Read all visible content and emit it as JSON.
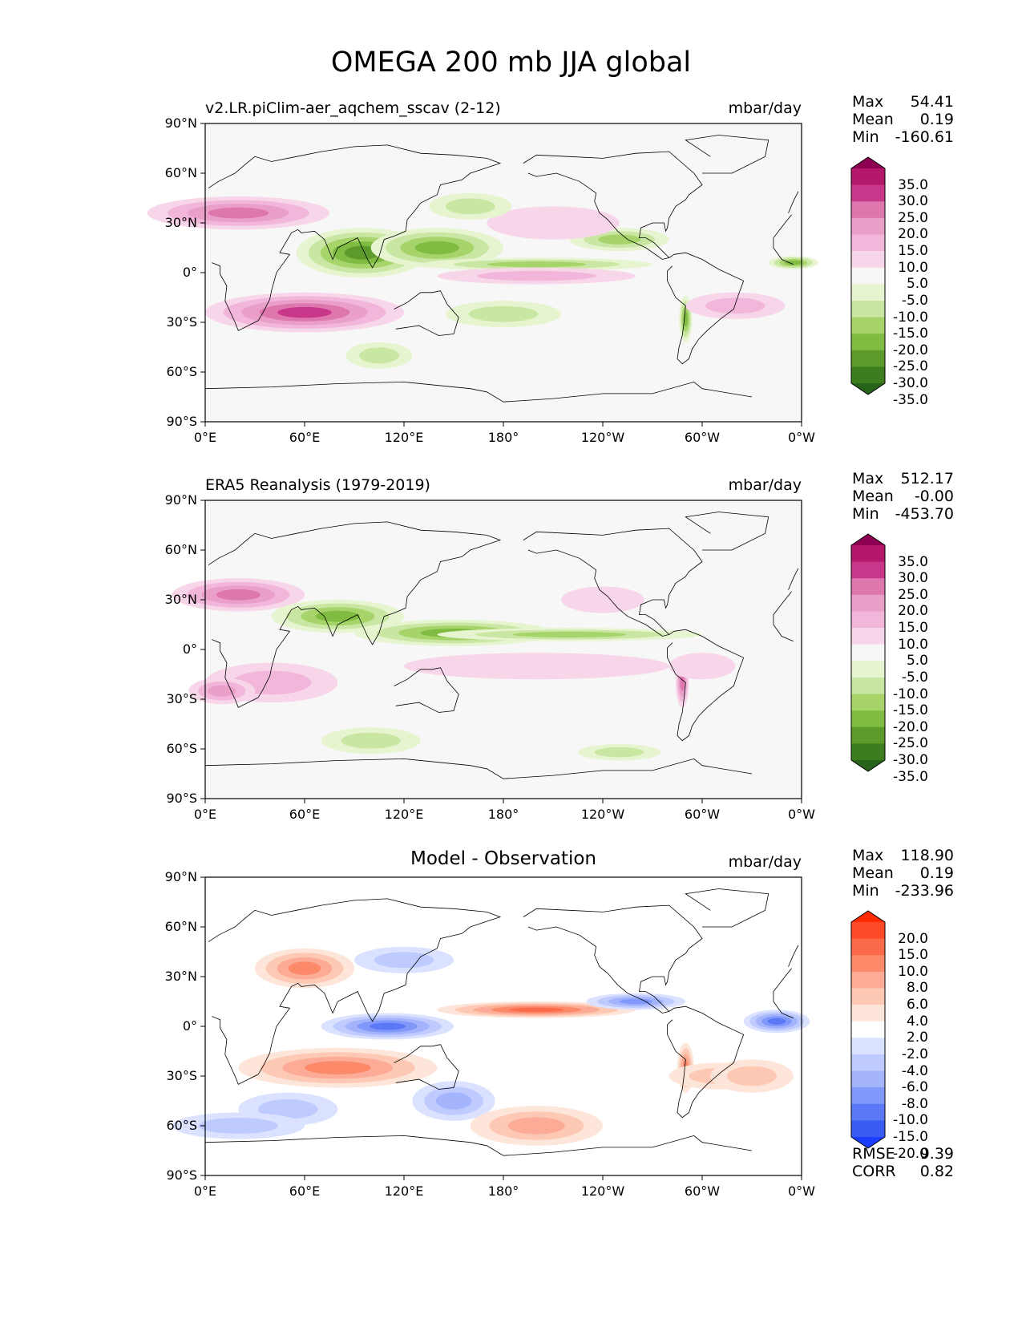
{
  "title": "OMEGA 200 mb JJA global",
  "chart_data": [
    {
      "type": "heatmap",
      "title": "v2.LR.piClim-aer_aqchem_sscav (2-12)",
      "units": "mbar/day",
      "xlabel": "",
      "ylabel": "",
      "x_ticks": [
        "0°E",
        "60°E",
        "120°E",
        "180°",
        "120°W",
        "60°W",
        "0°W"
      ],
      "y_ticks": [
        "90°N",
        "60°N",
        "30°N",
        "0°",
        "30°S",
        "60°S",
        "90°S"
      ],
      "stats": [
        {
          "label": "Max",
          "value": "54.41"
        },
        {
          "label": "Mean",
          "value": "0.19"
        },
        {
          "label": "Min",
          "value": "-160.61"
        }
      ],
      "colorbar": {
        "labels": [
          "35.0",
          "30.0",
          "25.0",
          "20.0",
          "15.0",
          "10.0",
          "5.0",
          "-5.0",
          "-10.0",
          "-15.0",
          "-20.0",
          "-25.0",
          "-30.0",
          "-35.0"
        ],
        "colors": [
          "#8e0152",
          "#b4186b",
          "#c9378a",
          "#de77ae",
          "#ea9fc9",
          "#f1b6da",
          "#f8d6e9",
          "#f7f7f7",
          "#e6f5d0",
          "#c9e6a2",
          "#a6d46b",
          "#7fbc41",
          "#5b9a2b",
          "#3d7d1e",
          "#276419"
        ],
        "extend": "both"
      }
    },
    {
      "type": "heatmap",
      "title": "ERA5 Reanalysis (1979-2019)",
      "units": "mbar/day",
      "xlabel": "",
      "ylabel": "",
      "x_ticks": [
        "0°E",
        "60°E",
        "120°E",
        "180°",
        "120°W",
        "60°W",
        "0°W"
      ],
      "y_ticks": [
        "90°N",
        "60°N",
        "30°N",
        "0°",
        "30°S",
        "60°S",
        "90°S"
      ],
      "stats": [
        {
          "label": "Max",
          "value": "512.17"
        },
        {
          "label": "Mean",
          "value": "-0.00"
        },
        {
          "label": "Min",
          "value": "-453.70"
        }
      ],
      "colorbar": {
        "labels": [
          "35.0",
          "30.0",
          "25.0",
          "20.0",
          "15.0",
          "10.0",
          "5.0",
          "-5.0",
          "-10.0",
          "-15.0",
          "-20.0",
          "-25.0",
          "-30.0",
          "-35.0"
        ],
        "colors": [
          "#8e0152",
          "#b4186b",
          "#c9378a",
          "#de77ae",
          "#ea9fc9",
          "#f1b6da",
          "#f8d6e9",
          "#f7f7f7",
          "#e6f5d0",
          "#c9e6a2",
          "#a6d46b",
          "#7fbc41",
          "#5b9a2b",
          "#3d7d1e",
          "#276419"
        ],
        "extend": "both"
      }
    },
    {
      "type": "heatmap",
      "title": "Model - Observation",
      "units": "mbar/day",
      "xlabel": "",
      "ylabel": "",
      "x_ticks": [
        "0°E",
        "60°E",
        "120°E",
        "180°",
        "120°W",
        "60°W",
        "0°W"
      ],
      "y_ticks": [
        "90°N",
        "60°N",
        "30°N",
        "0°",
        "30°S",
        "60°S",
        "90°S"
      ],
      "stats": [
        {
          "label": "Max",
          "value": "118.90"
        },
        {
          "label": "Mean",
          "value": "0.19"
        },
        {
          "label": "Min",
          "value": "-233.96"
        }
      ],
      "colorbar": {
        "labels": [
          "20.0",
          "15.0",
          "10.0",
          "8.0",
          "6.0",
          "4.0",
          "2.0",
          "-2.0",
          "-4.0",
          "-6.0",
          "-8.0",
          "-10.0",
          "-15.0",
          "-20.0"
        ],
        "colors": [
          "#ff2a00",
          "#ff4a2a",
          "#fb6a4a",
          "#fc8a6a",
          "#fcac96",
          "#fdc9b4",
          "#fee5d9",
          "#ffffff",
          "#dbe2ff",
          "#bfcbff",
          "#a3b4fd",
          "#8098fa",
          "#5b78f6",
          "#3a5cf2",
          "#1a3dff"
        ],
        "extend": "both"
      },
      "metrics": [
        {
          "label": "RMSE",
          "value": "9.39"
        },
        {
          "label": "CORR",
          "value": "0.82"
        }
      ]
    }
  ]
}
